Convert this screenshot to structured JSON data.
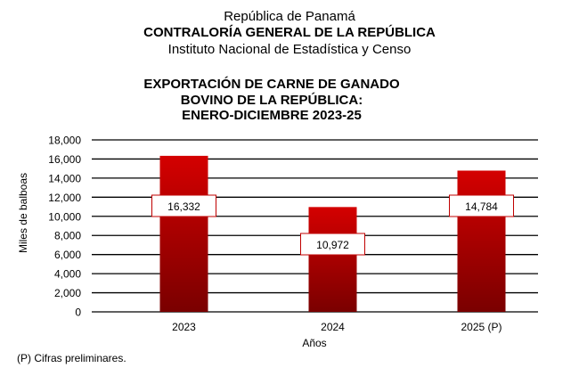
{
  "header": {
    "line1": "República de Panamá",
    "line2": "CONTRALORÍA GENERAL DE LA REPÚBLICA",
    "line3": "Instituto  Nacional de Estadística  y  Censo"
  },
  "footnote": "(P) Cifras  preliminares.",
  "colors": {
    "bar_top": "#d40000",
    "bar_bottom": "#7a0000",
    "label_border": "#c00000"
  },
  "chart_data": {
    "type": "bar",
    "title_lines": [
      "EXPORTACIÓN DE CARNE DE GANADO",
      "BOVINO DE LA REPÚBLICA:",
      "ENERO-DICIEMBRE 2023-25"
    ],
    "categories": [
      "2023",
      "2024",
      "2025 (P)"
    ],
    "values": [
      16332,
      10972,
      14784
    ],
    "value_labels": [
      "16,332",
      "10,972",
      "14,784"
    ],
    "xlabel": "Años",
    "ylabel": "Miles de balboas",
    "ylim": [
      0,
      18000
    ],
    "yticks": [
      0,
      2000,
      4000,
      6000,
      8000,
      10000,
      12000,
      14000,
      16000,
      18000
    ],
    "ytick_labels": [
      "0",
      "2,000",
      "4,000",
      "6,000",
      "8,000",
      "10,000",
      "12,000",
      "14,000",
      "16,000",
      "18,000"
    ],
    "grid": true,
    "legend": "none"
  }
}
